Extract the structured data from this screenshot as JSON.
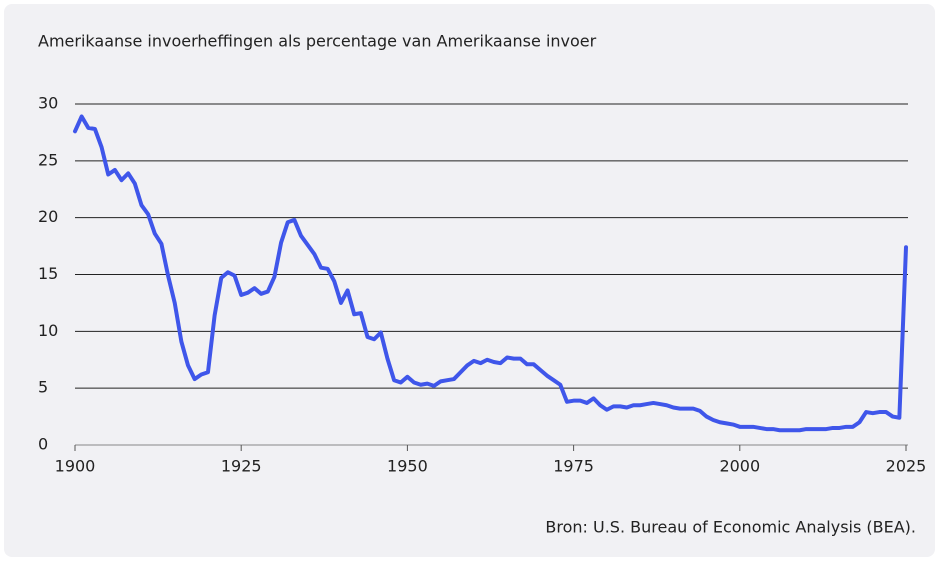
{
  "chart_data": {
    "type": "line",
    "title": "Amerikaanse invoerheffingen als percentage van Amerikaanse invoer",
    "source": "Bron: U.S. Bureau of Economic Analysis (BEA).",
    "x": [
      1900,
      1901,
      1902,
      1903,
      1904,
      1905,
      1906,
      1907,
      1908,
      1909,
      1910,
      1911,
      1912,
      1913,
      1914,
      1915,
      1916,
      1917,
      1918,
      1919,
      1920,
      1921,
      1922,
      1923,
      1924,
      1925,
      1926,
      1927,
      1928,
      1929,
      1930,
      1931,
      1932,
      1933,
      1934,
      1935,
      1936,
      1937,
      1938,
      1939,
      1940,
      1941,
      1942,
      1943,
      1944,
      1945,
      1946,
      1947,
      1948,
      1949,
      1950,
      1951,
      1952,
      1953,
      1954,
      1955,
      1956,
      1957,
      1958,
      1959,
      1960,
      1961,
      1962,
      1963,
      1964,
      1965,
      1966,
      1967,
      1968,
      1969,
      1970,
      1971,
      1972,
      1973,
      1974,
      1975,
      1976,
      1977,
      1978,
      1979,
      1980,
      1981,
      1982,
      1983,
      1984,
      1985,
      1986,
      1987,
      1988,
      1989,
      1990,
      1991,
      1992,
      1993,
      1994,
      1995,
      1996,
      1997,
      1998,
      1999,
      2000,
      2001,
      2002,
      2003,
      2004,
      2005,
      2006,
      2007,
      2008,
      2009,
      2010,
      2011,
      2012,
      2013,
      2014,
      2015,
      2016,
      2017,
      2018,
      2019,
      2020,
      2021,
      2022,
      2023,
      2024,
      2025
    ],
    "values": [
      27.6,
      28.9,
      27.9,
      27.8,
      26.2,
      23.8,
      24.2,
      23.3,
      23.9,
      23.0,
      21.1,
      20.3,
      18.6,
      17.7,
      14.9,
      12.5,
      9.1,
      7.0,
      5.8,
      6.2,
      6.4,
      11.4,
      14.7,
      15.2,
      14.9,
      13.2,
      13.4,
      13.8,
      13.3,
      13.5,
      14.8,
      17.8,
      19.6,
      19.8,
      18.4,
      17.6,
      16.8,
      15.6,
      15.5,
      14.4,
      12.5,
      13.6,
      11.5,
      11.6,
      9.5,
      9.3,
      9.9,
      7.6,
      5.7,
      5.5,
      6.0,
      5.5,
      5.3,
      5.4,
      5.2,
      5.6,
      5.7,
      5.8,
      6.4,
      7.0,
      7.4,
      7.2,
      7.5,
      7.3,
      7.2,
      7.7,
      7.6,
      7.6,
      7.1,
      7.1,
      6.6,
      6.1,
      5.7,
      5.3,
      3.8,
      3.9,
      3.9,
      3.7,
      4.1,
      3.5,
      3.1,
      3.4,
      3.4,
      3.3,
      3.5,
      3.5,
      3.6,
      3.7,
      3.6,
      3.5,
      3.3,
      3.2,
      3.2,
      3.2,
      3.0,
      2.5,
      2.2,
      2.0,
      1.9,
      1.8,
      1.6,
      1.6,
      1.6,
      1.5,
      1.4,
      1.4,
      1.3,
      1.3,
      1.3,
      1.3,
      1.4,
      1.4,
      1.4,
      1.4,
      1.5,
      1.5,
      1.6,
      1.6,
      2.0,
      2.9,
      2.8,
      2.9,
      2.9,
      2.5,
      2.4,
      17.4
    ],
    "color": "#3f56ea",
    "xlim": [
      1900,
      2025
    ],
    "xticks": [
      1900,
      1925,
      1950,
      1975,
      2000,
      2025
    ],
    "ylim": [
      0,
      30
    ],
    "yticks": [
      0,
      5,
      10,
      15,
      20,
      25,
      30
    ],
    "grid": true
  }
}
